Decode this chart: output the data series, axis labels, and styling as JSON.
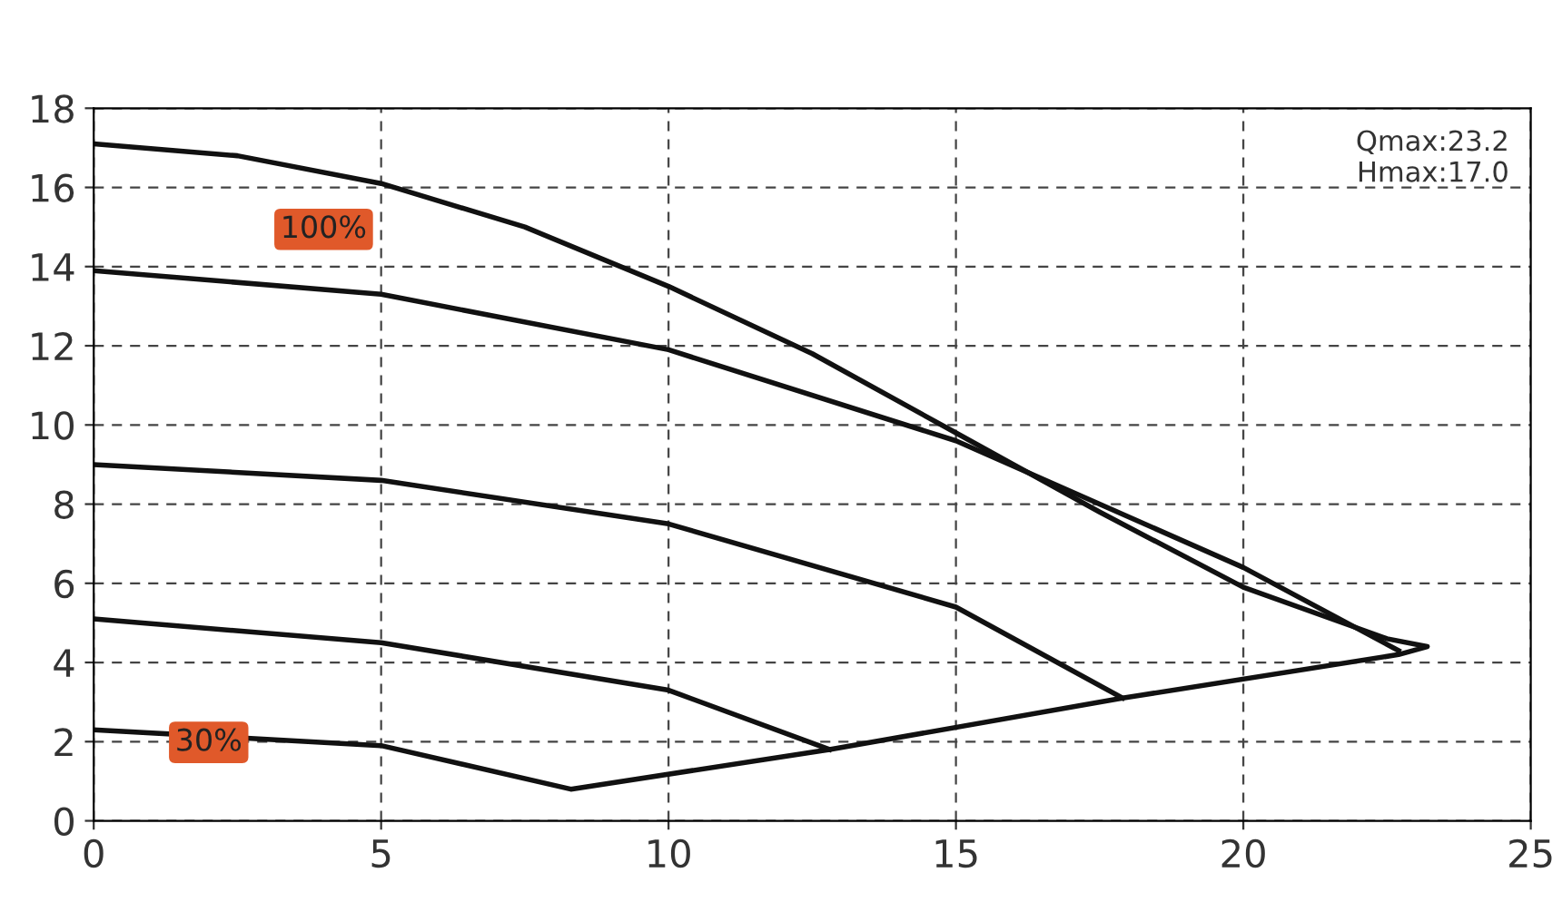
{
  "chart_data": {
    "type": "line",
    "xlim": [
      0,
      25
    ],
    "ylim": [
      0,
      18
    ],
    "xticks": [
      0,
      5,
      10,
      15,
      20,
      25
    ],
    "yticks": [
      0,
      2,
      4,
      6,
      8,
      10,
      12,
      14,
      16,
      18
    ],
    "grid": true,
    "legend": false,
    "marker": "none",
    "line_style": "solid",
    "series": [
      {
        "color": "#111111",
        "x": [
          0,
          2.5,
          5,
          7.5,
          10,
          12.5,
          15,
          17.5,
          20,
          22.5,
          23.2,
          22.7,
          17.9,
          12.8,
          8.3,
          5,
          0
        ],
        "values": [
          17.1,
          16.8,
          16.1,
          15.0,
          13.5,
          11.8,
          9.8,
          7.8,
          5.9,
          4.6,
          4.4,
          4.2,
          3.1,
          1.8,
          0.8,
          1.9,
          2.3
        ]
      },
      {
        "color": "#111111",
        "x": [
          0,
          5,
          10,
          15,
          20,
          22.7
        ],
        "values": [
          13.9,
          13.3,
          11.9,
          9.6,
          6.4,
          4.3
        ]
      },
      {
        "color": "#111111",
        "x": [
          0,
          5,
          10,
          15,
          17.9
        ],
        "values": [
          9.0,
          8.6,
          7.5,
          5.4,
          3.1
        ]
      },
      {
        "color": "#111111",
        "x": [
          0,
          5,
          10,
          12.8
        ],
        "values": [
          5.1,
          4.5,
          3.3,
          1.8
        ]
      }
    ],
    "annotations": [
      "100%",
      "30%",
      "Qmax:23.2\nHmax:17.0"
    ]
  }
}
